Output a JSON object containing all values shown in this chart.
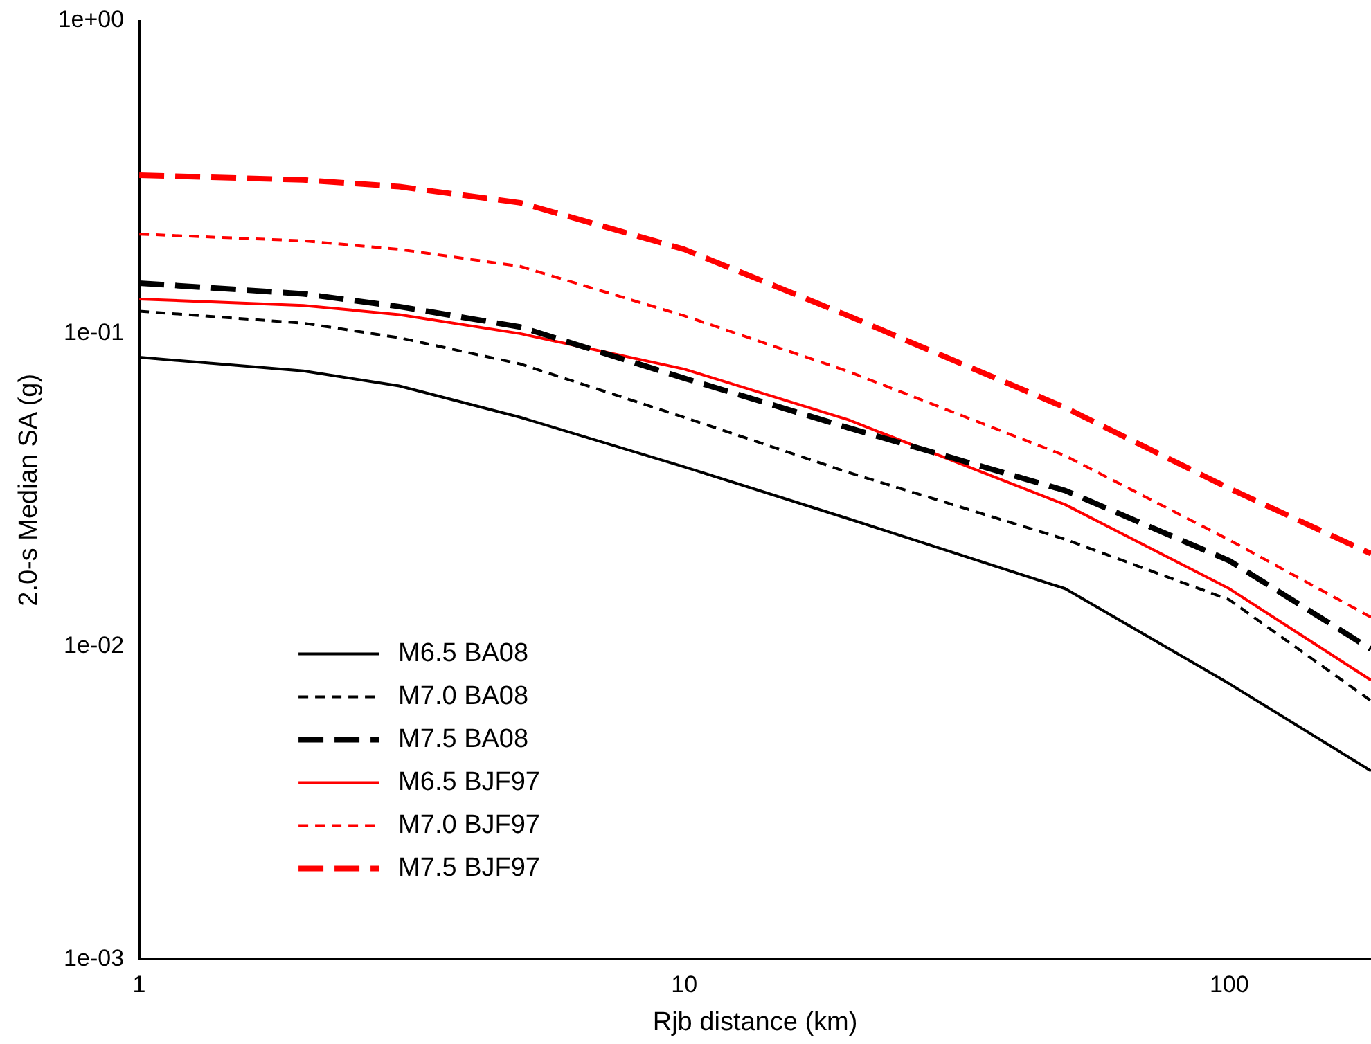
{
  "chart_data": {
    "type": "line",
    "xlabel": "Rjb distance (km)",
    "ylabel": "2.0-s Median SA (g)",
    "log": "xy",
    "grid": false,
    "legend": "bottom left",
    "marker": "none",
    "xlim": [
      1,
      182
    ],
    "xticks": [
      1,
      10,
      100
    ],
    "ylim": [
      0.001,
      1
    ],
    "yticks": [
      {
        "value": 0.001,
        "label": "1e-03"
      },
      {
        "value": 0.01,
        "label": "1e-02"
      },
      {
        "value": 0.1,
        "label": "1e-01"
      },
      {
        "value": 1,
        "label": "1e+00"
      }
    ],
    "x": [
      1,
      2,
      3,
      5,
      10,
      20,
      50,
      100,
      182
    ],
    "series": [
      {
        "name": "M6.5 BA08",
        "color": "#000000",
        "line_style": "solid",
        "values": [
          0.084,
          0.076,
          0.068,
          0.054,
          0.0375,
          0.0256,
          0.0153,
          0.0076,
          0.004
        ]
      },
      {
        "name": "M7.0 BA08",
        "color": "#000000",
        "line_style": "dashed",
        "values": [
          0.118,
          0.108,
          0.097,
          0.08,
          0.054,
          0.036,
          0.022,
          0.0141,
          0.0067
        ]
      },
      {
        "name": "M7.5 BA08",
        "color": "#000000",
        "line_style": "dashed",
        "values": [
          0.145,
          0.134,
          0.122,
          0.105,
          0.072,
          0.05,
          0.0315,
          0.0188,
          0.0098
        ]
      },
      {
        "name": "M6.5 BJF97",
        "color": "#ff0000",
        "line_style": "solid",
        "values": [
          0.129,
          0.123,
          0.115,
          0.1,
          0.077,
          0.053,
          0.0284,
          0.0153,
          0.0078
        ]
      },
      {
        "name": "M7.0 BJF97",
        "color": "#ff0000",
        "line_style": "dashed",
        "values": [
          0.208,
          0.198,
          0.186,
          0.164,
          0.114,
          0.0757,
          0.0407,
          0.0219,
          0.0124
        ]
      },
      {
        "name": "M7.5 BJF97",
        "color": "#ff0000",
        "line_style": "dashed",
        "values": [
          0.321,
          0.31,
          0.295,
          0.262,
          0.186,
          0.114,
          0.058,
          0.032,
          0.0198
        ]
      }
    ]
  }
}
